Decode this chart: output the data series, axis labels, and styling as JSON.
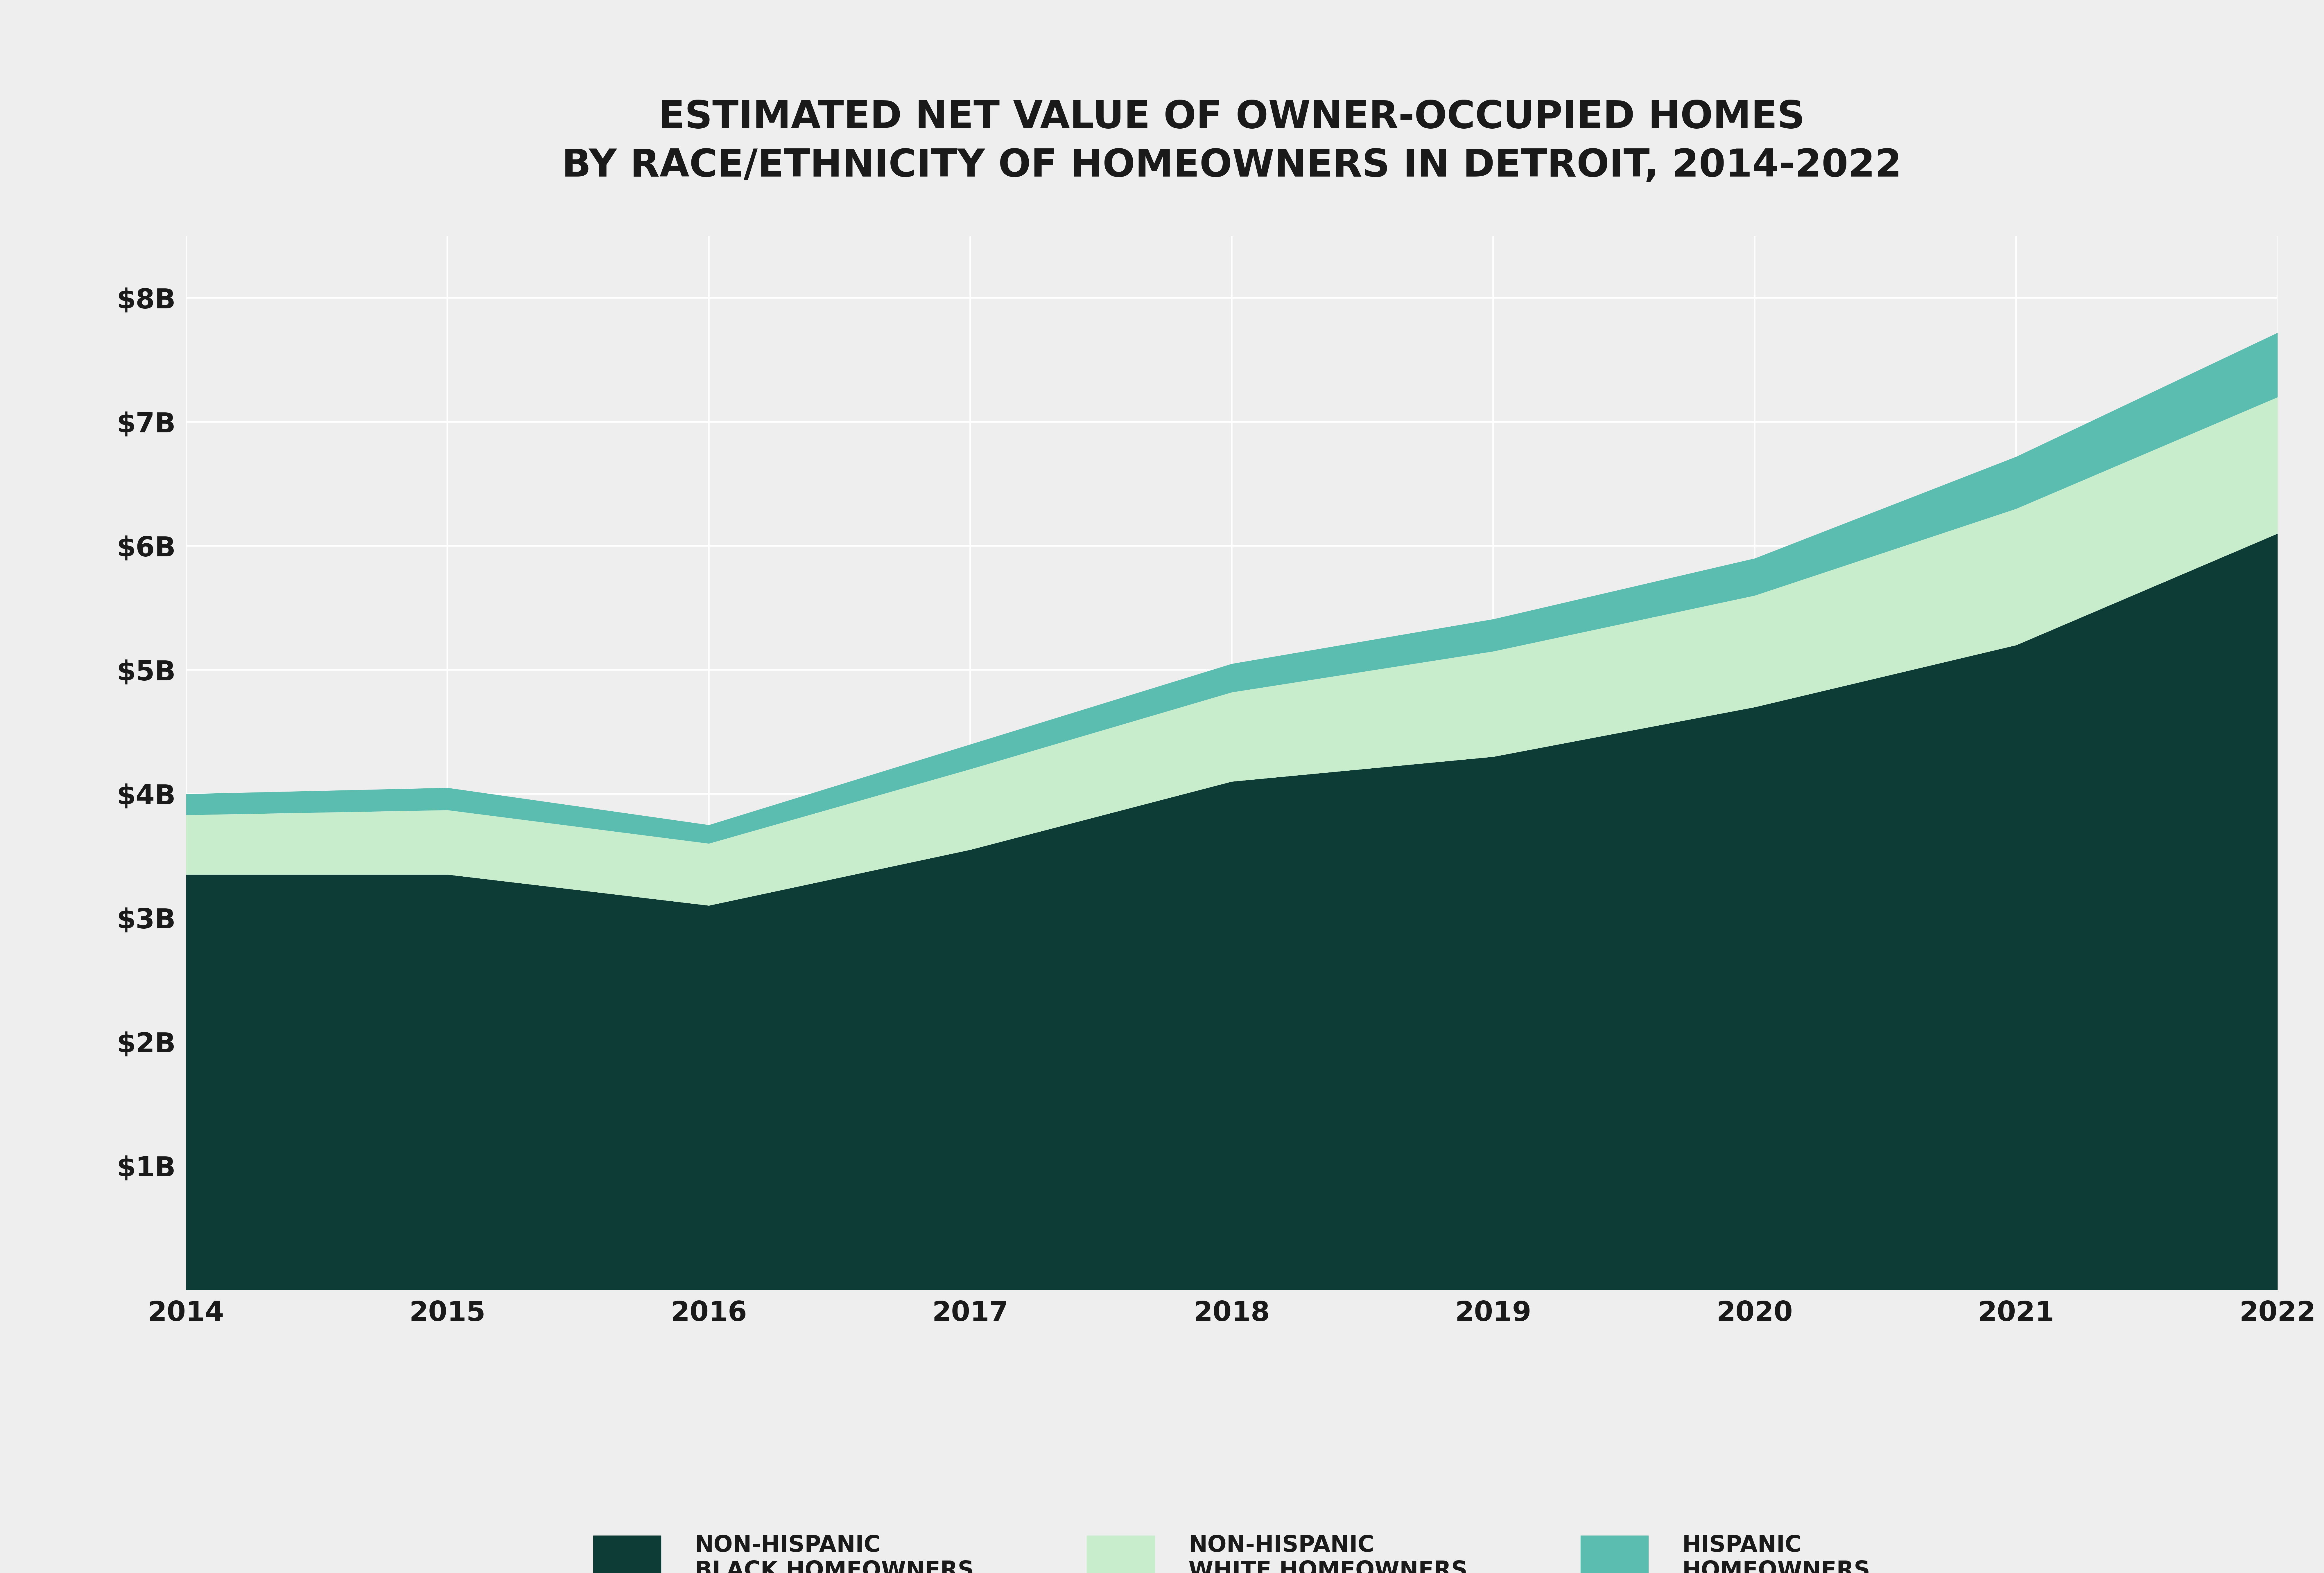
{
  "title_line1": "ESTIMATED NET VALUE OF OWNER-OCCUPIED HOMES",
  "title_line2": "BY RACE/ETHNICITY OF HOMEOWNERS IN DETROIT, 2014-2022",
  "years": [
    2014,
    2015,
    2016,
    2017,
    2018,
    2019,
    2020,
    2021,
    2022
  ],
  "black_homeowners": [
    3.35,
    3.35,
    3.1,
    3.55,
    4.1,
    4.3,
    4.7,
    5.2,
    6.1
  ],
  "white_homeowners": [
    0.48,
    0.52,
    0.5,
    0.65,
    0.72,
    0.85,
    0.9,
    1.1,
    1.1
  ],
  "hispanic_homeowners": [
    0.17,
    0.18,
    0.15,
    0.2,
    0.23,
    0.26,
    0.3,
    0.42,
    0.52
  ],
  "color_black": "#0d3b35",
  "color_white": "#c8edcc",
  "color_hispanic": "#5bbdb0",
  "background_color": "#eeeeee",
  "plot_bg_color": "#eeeeee",
  "ylim": [
    0,
    8.5
  ],
  "yticks": [
    0,
    1,
    2,
    3,
    4,
    5,
    6,
    7,
    8
  ],
  "ytick_labels": [
    "",
    "$1B",
    "$2B",
    "$3B",
    "$4B",
    "$5B",
    "$6B",
    "$7B",
    "$8B"
  ],
  "title_fontsize": 95,
  "tick_fontsize": 68,
  "legend_fontsize": 56,
  "legend_label_black": "NON-HISPANIC\nBLACK HOMEOWNERS",
  "legend_label_white": "NON-HISPANIC\nWHITE HOMEOWNERS",
  "legend_label_hispanic": "HISPANIC\nHOMEOWNERS"
}
